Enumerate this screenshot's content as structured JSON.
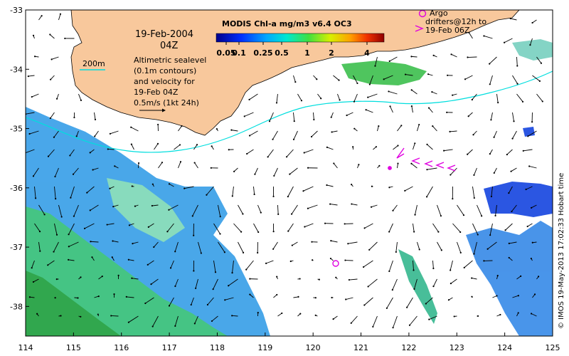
{
  "map": {
    "date_line": "19-Feb-2004",
    "time_line": "04Z",
    "colorbar_title": "MODIS Chl-a mg/m3 v6.4 OC3",
    "colorbar_ticks": [
      "0.05",
      "0.1",
      "0.25",
      "0.5",
      "1",
      "2",
      "4"
    ],
    "contour_legend": "200m",
    "sealevel_note": [
      "Altimetric sealevel",
      "(0.1m contours)",
      "and velocity for",
      "19-Feb 04Z",
      "0.5m/s (1kt 24h)"
    ],
    "argo_note": [
      "Argo",
      "drifters@12h to",
      "19-Feb 06Z"
    ],
    "credit": "© IMOS 19-May-2013 17:02:33 Hobart time",
    "x_ticks": [
      "114",
      "115",
      "116",
      "117",
      "118",
      "119",
      "120",
      "121",
      "122",
      "123",
      "124",
      "125"
    ],
    "y_ticks": [
      "-33",
      "-34",
      "-35",
      "-36",
      "-37",
      "-38"
    ],
    "colors": {
      "land": "#f8c89c",
      "coastline": "#000000",
      "contour_200m": "#00dede",
      "drifter": "#e000e0",
      "arrow": "#000000"
    }
  }
}
